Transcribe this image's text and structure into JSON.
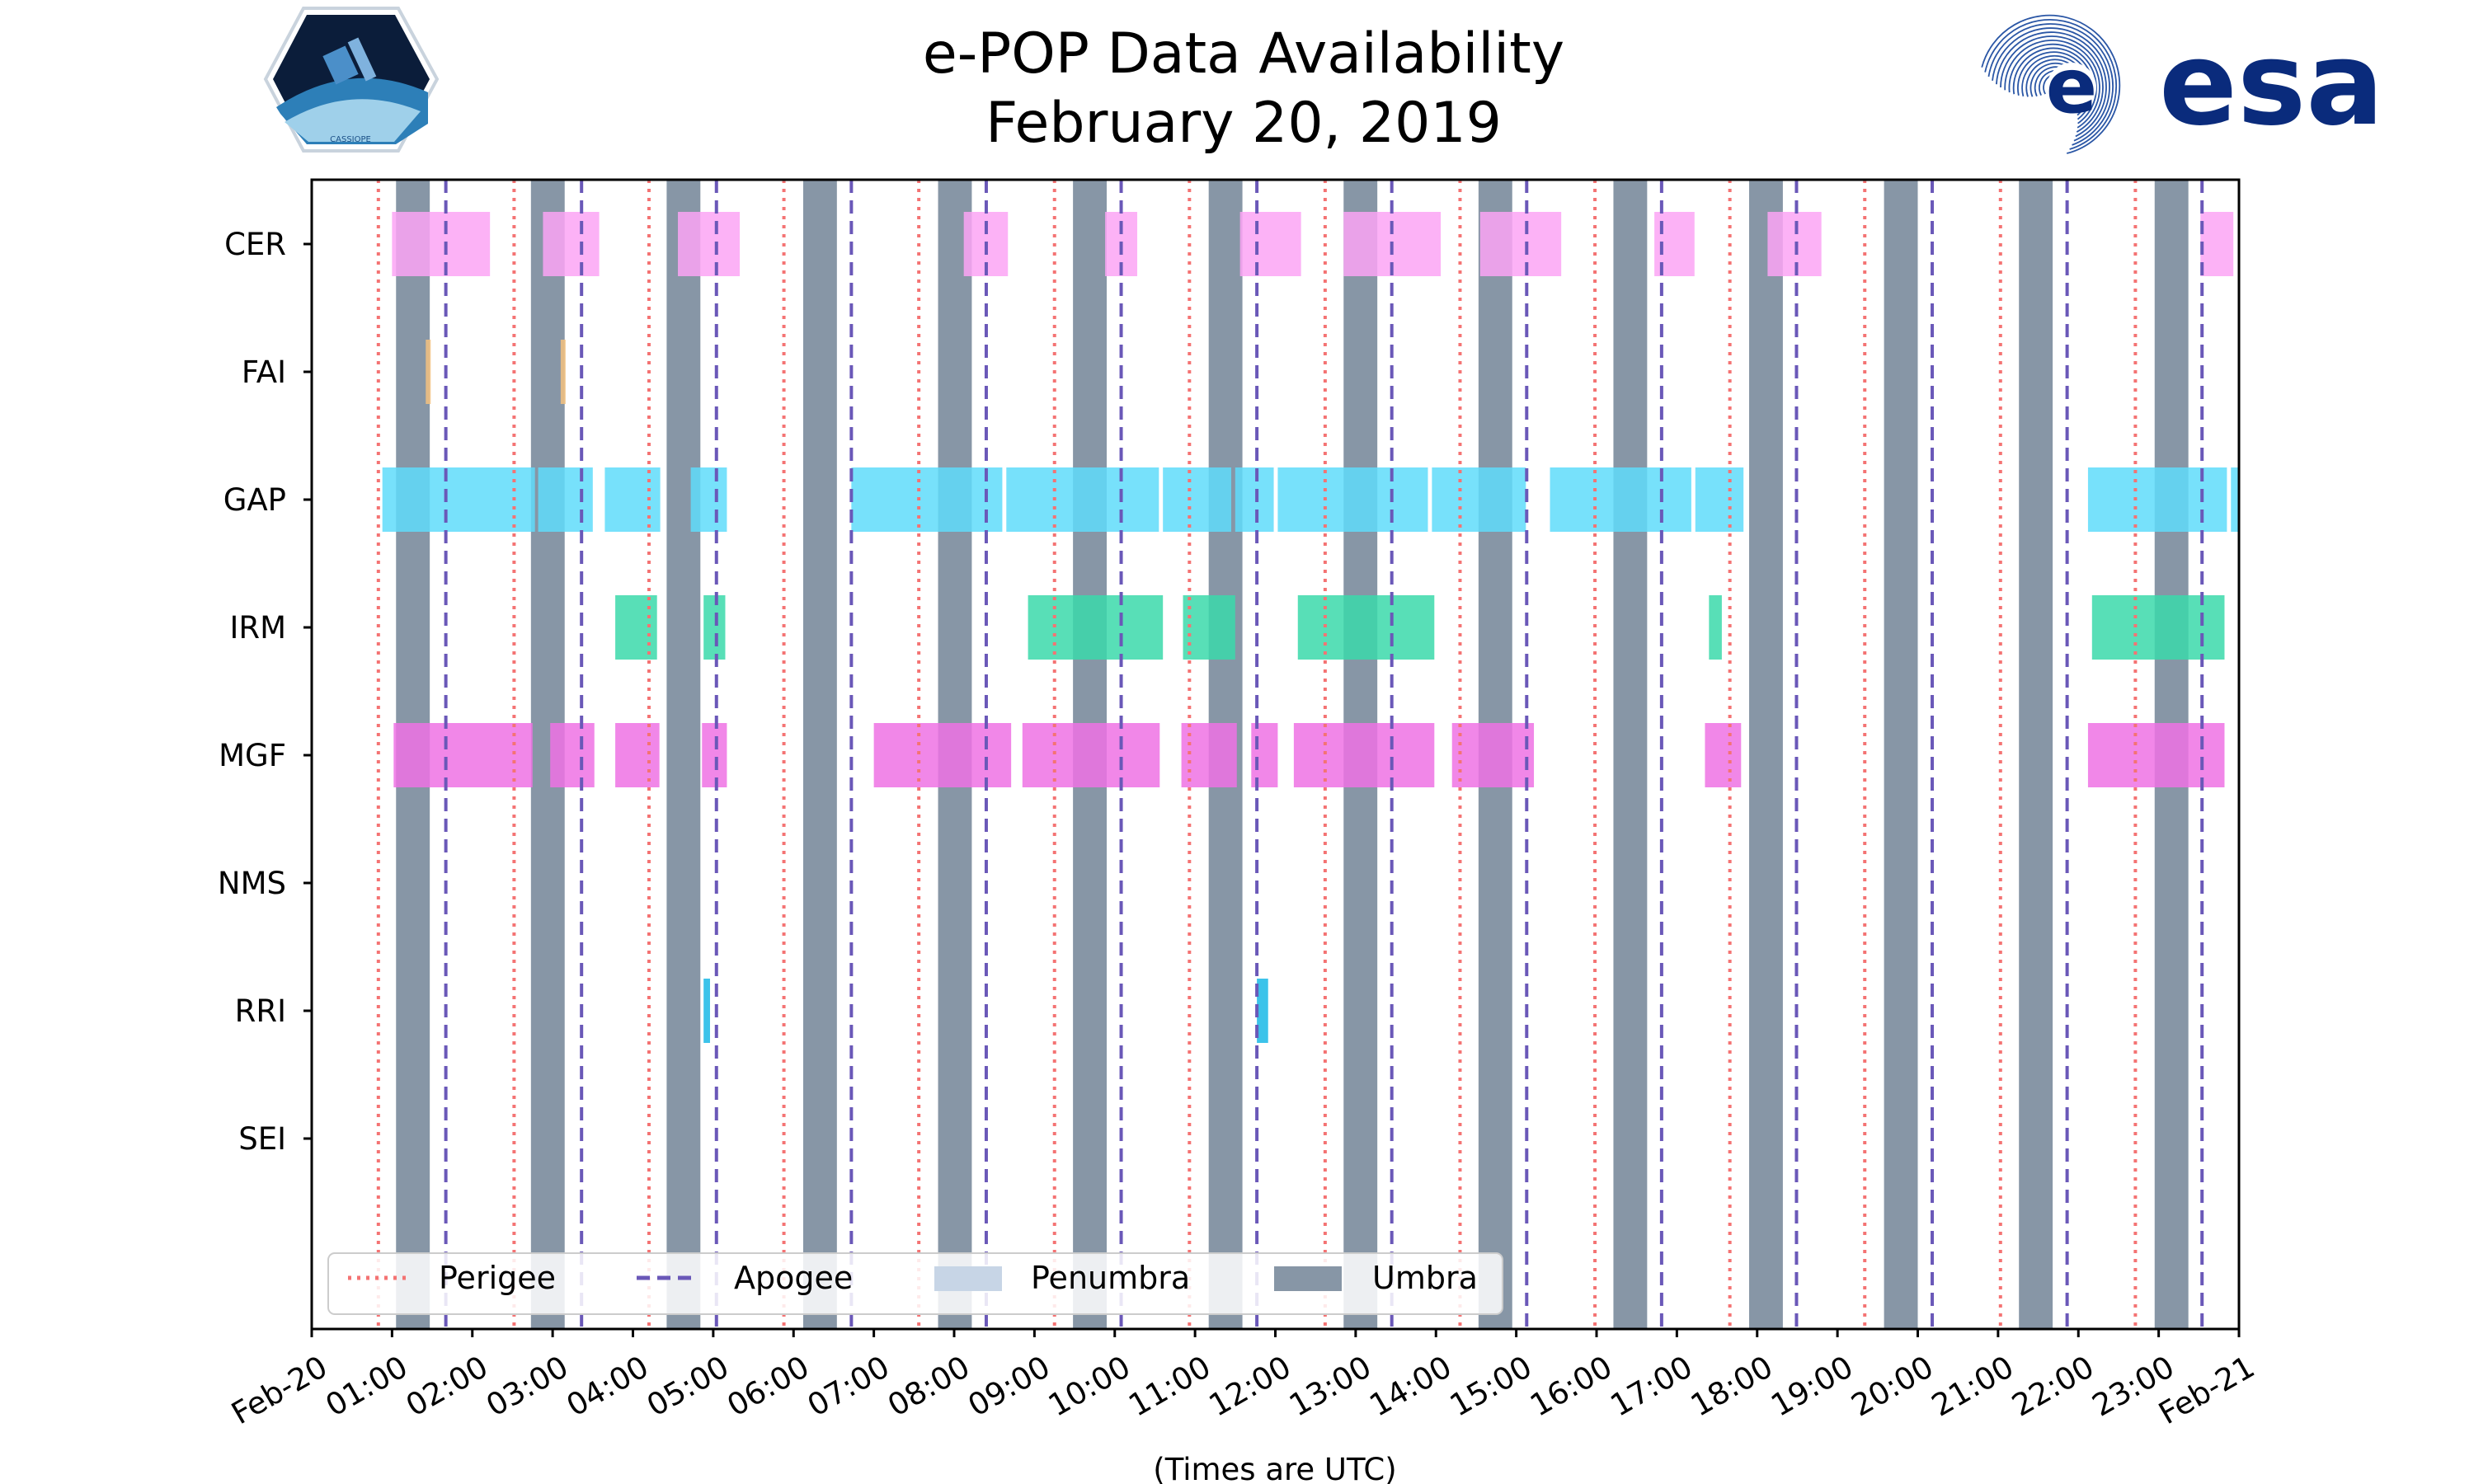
{
  "header": {
    "title_line1": "e-POP Data Availability",
    "title_line2": "February 20, 2019",
    "left_logo_text": "CASSIOPE",
    "right_logo_text": "esa"
  },
  "chart_data": {
    "type": "timeline",
    "title": "e-POP Data Availability February 20, 2019",
    "xlabel": "(Times are UTC)",
    "ylabel": "",
    "x_range_hours": [
      0,
      24
    ],
    "x_tick_labels": [
      "Feb-20",
      "01:00",
      "02:00",
      "03:00",
      "04:00",
      "05:00",
      "06:00",
      "07:00",
      "08:00",
      "09:00",
      "10:00",
      "11:00",
      "12:00",
      "13:00",
      "14:00",
      "15:00",
      "16:00",
      "17:00",
      "18:00",
      "19:00",
      "20:00",
      "21:00",
      "22:00",
      "23:00",
      "Feb-21"
    ],
    "instruments": [
      "CER",
      "FAI",
      "GAP",
      "IRM",
      "MGF",
      "NMS",
      "RRI",
      "SEI"
    ],
    "colors": {
      "CER": "#fba4f5",
      "FAI": "#f5c27f",
      "GAP": "#5fdcfa",
      "IRM": "#3bd9aa",
      "MGF": "#ef72e4",
      "RRI": "#1ab8e6",
      "umbra": "#8796a6",
      "penumbra": "#c7d5e6",
      "perigee": "#f47373",
      "apogee": "#6a58b8"
    },
    "availability": {
      "CER": [
        [
          1.0,
          2.22
        ],
        [
          2.88,
          3.58
        ],
        [
          4.56,
          5.33
        ],
        [
          8.12,
          8.67
        ],
        [
          9.88,
          10.28
        ],
        [
          11.56,
          12.32
        ],
        [
          12.85,
          14.06
        ],
        [
          14.55,
          15.56
        ],
        [
          16.72,
          17.22
        ],
        [
          18.13,
          18.8
        ],
        [
          23.52,
          23.93
        ]
      ],
      "FAI": [
        [
          1.42,
          1.46
        ],
        [
          3.1,
          3.14
        ]
      ],
      "GAP": [
        [
          0.88,
          2.78
        ],
        [
          2.82,
          3.5
        ],
        [
          3.65,
          4.34
        ],
        [
          4.72,
          5.17
        ],
        [
          6.72,
          8.6
        ],
        [
          8.65,
          10.55
        ],
        [
          10.6,
          11.45
        ],
        [
          11.5,
          11.98
        ],
        [
          12.03,
          13.9
        ],
        [
          13.95,
          15.12
        ],
        [
          15.42,
          17.18
        ],
        [
          17.23,
          17.83
        ],
        [
          22.12,
          23.85
        ],
        [
          23.9,
          24.0
        ]
      ],
      "IRM": [
        [
          3.78,
          4.3
        ],
        [
          4.88,
          5.15
        ],
        [
          8.92,
          10.6
        ],
        [
          10.85,
          11.5
        ],
        [
          12.28,
          13.98
        ],
        [
          17.4,
          17.56
        ],
        [
          22.17,
          23.82
        ]
      ],
      "MGF": [
        [
          1.02,
          2.75
        ],
        [
          2.97,
          3.52
        ],
        [
          3.78,
          4.33
        ],
        [
          4.86,
          5.17
        ],
        [
          7.0,
          8.71
        ],
        [
          8.85,
          10.56
        ],
        [
          10.83,
          11.52
        ],
        [
          11.7,
          12.03
        ],
        [
          12.23,
          13.98
        ],
        [
          14.2,
          15.22
        ],
        [
          17.35,
          17.8
        ],
        [
          22.12,
          23.82
        ]
      ],
      "NMS": [],
      "RRI": [
        [
          4.88,
          4.96
        ],
        [
          11.77,
          11.91
        ]
      ],
      "SEI": []
    },
    "umbra_hours": [
      [
        1.05,
        1.47
      ],
      [
        2.73,
        3.15
      ],
      [
        4.42,
        4.84
      ],
      [
        6.12,
        6.54
      ],
      [
        7.8,
        8.22
      ],
      [
        9.48,
        9.9
      ],
      [
        11.17,
        11.59
      ],
      [
        12.85,
        13.27
      ],
      [
        14.53,
        14.95
      ],
      [
        16.21,
        16.63
      ],
      [
        17.9,
        18.32
      ],
      [
        19.58,
        20.0
      ],
      [
        21.26,
        21.68
      ],
      [
        22.95,
        23.37
      ]
    ],
    "perigee_hours": [
      0.83,
      2.52,
      4.2,
      5.88,
      7.56,
      9.25,
      10.93,
      12.62,
      14.3,
      15.98,
      17.66,
      19.34,
      21.03,
      22.71
    ],
    "apogee_hours": [
      1.67,
      3.36,
      5.04,
      6.72,
      8.4,
      10.08,
      11.77,
      13.45,
      15.13,
      16.81,
      18.49,
      20.18,
      21.86,
      23.54
    ],
    "legend": {
      "placement": "lower-left",
      "entries": [
        {
          "label": "Perigee",
          "style": "dotted"
        },
        {
          "label": "Apogee",
          "style": "dashed"
        },
        {
          "label": "Penumbra",
          "style": "patch-light"
        },
        {
          "label": "Umbra",
          "style": "patch-dark"
        }
      ]
    }
  }
}
